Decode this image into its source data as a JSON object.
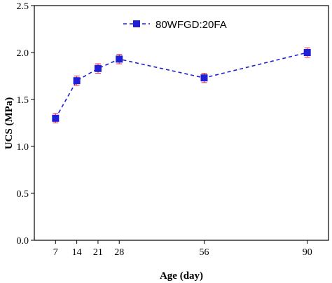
{
  "chart_data": {
    "type": "line",
    "xlabel": "Age (day)",
    "ylabel": "UCS (MPa)",
    "x_ticks": [
      7,
      14,
      21,
      28,
      56,
      90
    ],
    "y_ticks": [
      "0.0",
      "0.5",
      "1.0",
      "1.5",
      "2.0",
      "2.5"
    ],
    "xlim": [
      0,
      97
    ],
    "ylim": [
      0,
      2.5
    ],
    "grid": false,
    "legend_position": "top-center",
    "series": [
      {
        "name": "80WFGD:20FA",
        "color": "#1f1fd6",
        "marker": "square",
        "line_style": "dashed",
        "error_bar_color": "#e8293b",
        "x": [
          7,
          14,
          21,
          28,
          56,
          90
        ],
        "y": [
          1.3,
          1.7,
          1.83,
          1.93,
          1.73,
          2.0
        ],
        "error": [
          0.05,
          0.05,
          0.05,
          0.05,
          0.05,
          0.05
        ]
      }
    ]
  }
}
